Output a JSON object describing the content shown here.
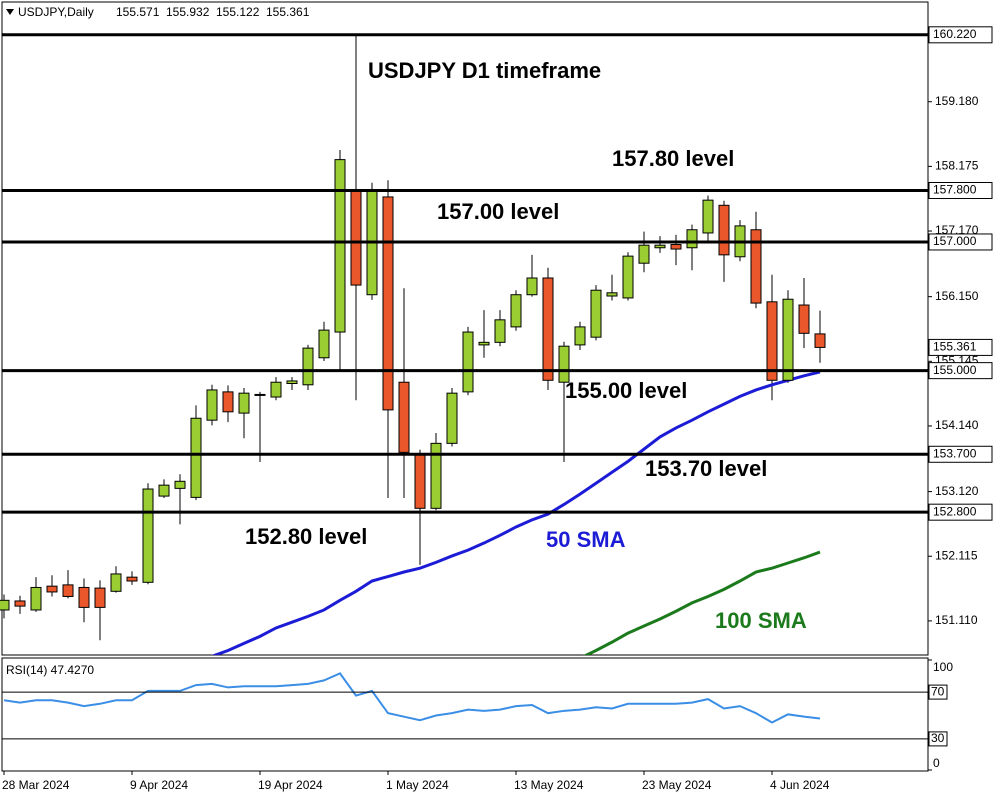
{
  "header": {
    "symbol": "USDJPY,Daily"
  },
  "chart_data": [
    {
      "type": "candlestick",
      "title": "USDJPY D1 timeframe",
      "categories": [
        "28 Mar 2024",
        null,
        null,
        null,
        null,
        null,
        null,
        null,
        "9 Apr 2024",
        null,
        null,
        null,
        null,
        null,
        null,
        null,
        "19 Apr 2024",
        null,
        null,
        null,
        null,
        null,
        null,
        null,
        "1 May 2024",
        null,
        null,
        null,
        null,
        null,
        null,
        null,
        "13 May 2024",
        null,
        null,
        null,
        null,
        null,
        null,
        null,
        "23 May 2024",
        null,
        null,
        null,
        null,
        null,
        null,
        null,
        "4 Jun 2024",
        null,
        null,
        null
      ],
      "open": [
        151.28,
        151.42,
        151.28,
        151.65,
        151.67,
        151.63,
        151.62,
        151.57,
        151.79,
        151.71,
        153.05,
        153.17,
        153.03,
        154.23,
        154.67,
        154.34,
        154.62,
        154.59,
        154.8,
        154.78,
        155.2,
        155.6,
        157.81,
        156.18,
        157.7,
        154.82,
        153.69,
        152.86,
        153.87,
        154.67,
        155.4,
        155.44,
        155.68,
        156.18,
        156.44,
        154.82,
        155.4,
        155.52,
        156.16,
        156.13,
        156.67,
        156.91,
        156.96,
        156.91,
        157.14,
        157.57,
        156.77,
        157.19,
        156.07,
        154.85,
        156.02,
        155.571
      ],
      "high": [
        151.52,
        151.5,
        151.79,
        151.82,
        151.9,
        151.77,
        151.74,
        151.96,
        151.88,
        153.25,
        153.31,
        153.39,
        154.46,
        154.78,
        154.77,
        154.73,
        154.67,
        154.9,
        154.9,
        155.4,
        155.76,
        158.43,
        160.22,
        157.92,
        157.96,
        156.28,
        153.77,
        154.03,
        154.73,
        155.68,
        155.94,
        155.94,
        156.25,
        156.8,
        156.6,
        155.45,
        155.76,
        156.33,
        156.49,
        156.84,
        157.16,
        157.09,
        157.11,
        157.27,
        157.72,
        157.64,
        157.34,
        157.47,
        156.49,
        156.25,
        156.44,
        155.932
      ],
      "low": [
        151.15,
        151.22,
        151.25,
        151.49,
        151.46,
        151.09,
        150.81,
        151.55,
        151.67,
        151.68,
        153.02,
        152.61,
        152.99,
        154.15,
        154.2,
        153.95,
        153.58,
        154.54,
        154.7,
        154.7,
        155.15,
        154.98,
        154.54,
        156.1,
        153.02,
        153.02,
        151.98,
        152.83,
        153.82,
        154.62,
        155.2,
        155.38,
        155.62,
        156.15,
        154.7,
        153.58,
        155.32,
        155.47,
        156.09,
        156.09,
        156.53,
        156.83,
        156.64,
        156.56,
        157.0,
        156.38,
        156.7,
        155.97,
        154.54,
        154.81,
        155.35,
        155.122
      ],
      "close": [
        151.43,
        151.34,
        151.63,
        151.56,
        151.49,
        151.32,
        151.32,
        151.84,
        151.73,
        153.16,
        153.22,
        153.28,
        154.26,
        154.7,
        154.36,
        154.65,
        154.63,
        154.82,
        154.84,
        155.35,
        155.63,
        158.28,
        156.33,
        157.81,
        154.39,
        153.73,
        152.86,
        153.87,
        154.65,
        155.6,
        155.44,
        155.79,
        156.18,
        156.44,
        154.85,
        155.38,
        155.68,
        156.25,
        156.21,
        156.78,
        156.95,
        156.95,
        156.89,
        157.19,
        157.65,
        156.8,
        157.25,
        156.05,
        154.85,
        156.11,
        155.58,
        155.361
      ],
      "up_color": "#9acd32",
      "down_color": "#e9572b",
      "ylim": [
        150.58,
        160.73
      ],
      "yticks": [
        {
          "value": 159.18,
          "label": "159.180"
        },
        {
          "value": 158.175,
          "label": "158.175"
        },
        {
          "value": 157.17,
          "label": "157.170"
        },
        {
          "value": 156.15,
          "label": "156.150"
        },
        {
          "value": 155.145,
          "label": "155.145"
        },
        {
          "value": 154.14,
          "label": "154.140"
        },
        {
          "value": 153.12,
          "label": "153.120"
        },
        {
          "value": 152.115,
          "label": "152.115"
        },
        {
          "value": 151.11,
          "label": "151.110"
        }
      ],
      "levels": [
        {
          "value": 160.22,
          "label": "160.220"
        },
        {
          "value": 157.8,
          "label": "157.800"
        },
        {
          "value": 157.0,
          "label": "157.000"
        },
        {
          "value": 155.0,
          "label": "155.000"
        },
        {
          "value": 153.7,
          "label": "153.700"
        },
        {
          "value": 152.8,
          "label": "152.800"
        }
      ],
      "annotations": [
        "157.80 level",
        "157.00 level",
        "155.00 level",
        "153.70 level",
        "152.80 level"
      ],
      "series": [
        {
          "name": "50 SMA",
          "color": "#1c1cd6",
          "values": [
            null,
            null,
            null,
            null,
            null,
            null,
            null,
            null,
            null,
            null,
            null,
            null,
            null,
            150.56,
            150.65,
            150.76,
            150.87,
            151.0,
            151.09,
            151.18,
            151.28,
            151.43,
            151.57,
            151.73,
            151.8,
            151.87,
            151.93,
            152.02,
            152.12,
            152.21,
            152.32,
            152.44,
            152.57,
            152.68,
            152.77,
            152.92,
            153.08,
            153.25,
            153.42,
            153.59,
            153.78,
            153.97,
            154.11,
            154.23,
            154.36,
            154.48,
            154.6,
            154.7,
            154.78,
            154.85,
            154.92,
            154.98
          ]
        },
        {
          "name": "100 SMA",
          "color": "#1b7a1b",
          "values": [
            null,
            null,
            null,
            null,
            null,
            null,
            null,
            null,
            null,
            null,
            null,
            null,
            null,
            null,
            null,
            null,
            null,
            null,
            null,
            null,
            null,
            null,
            null,
            null,
            null,
            null,
            null,
            null,
            null,
            null,
            null,
            null,
            null,
            null,
            null,
            null,
            150.53,
            150.65,
            150.78,
            150.92,
            151.03,
            151.14,
            151.26,
            151.39,
            151.49,
            151.6,
            151.73,
            151.87,
            151.93,
            152.01,
            152.09,
            152.18
          ]
        }
      ]
    },
    {
      "type": "line",
      "title": "RSI(14) 47.4270",
      "series": [
        {
          "color": "#3a8ee6",
          "values": [
            63,
            61,
            63,
            63,
            61,
            58,
            60,
            63,
            63,
            71,
            71,
            71,
            76,
            77,
            74,
            75,
            75,
            75,
            76,
            77,
            80,
            86,
            67,
            71,
            52,
            49,
            46,
            50,
            52,
            55,
            54,
            55,
            58,
            59,
            52,
            54,
            55,
            57,
            56,
            60,
            60,
            60,
            60,
            61,
            64,
            56,
            58,
            52,
            44,
            51,
            49,
            47.427
          ]
        }
      ],
      "ylim": [
        0,
        100
      ],
      "yticks": [
        0,
        100
      ],
      "levels": [
        30,
        70
      ]
    }
  ]
}
